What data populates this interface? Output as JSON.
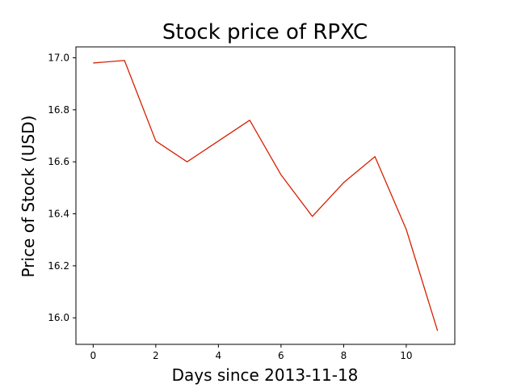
{
  "chart_data": {
    "type": "line",
    "title": "Stock price of RPXC",
    "xlabel": "Days since 2013-11-18",
    "ylabel": "Price of Stock (USD)",
    "x": [
      0,
      1,
      2,
      3,
      4,
      5,
      6,
      7,
      8,
      9,
      10,
      11
    ],
    "series": [
      {
        "values": [
          16.98,
          16.99,
          16.68,
          16.6,
          16.68,
          16.76,
          16.55,
          16.39,
          16.52,
          16.62,
          16.34,
          15.95
        ],
        "color": "#d62000"
      }
    ],
    "xlim": [
      -0.55,
      11.55
    ],
    "ylim": [
      15.898,
      17.042
    ],
    "x_ticks": [
      0,
      2,
      4,
      6,
      8,
      10
    ],
    "x_tick_labels": [
      "0",
      "2",
      "4",
      "6",
      "8",
      "10"
    ],
    "y_ticks": [
      16.0,
      16.2,
      16.4,
      16.6,
      16.8,
      17.0
    ],
    "y_tick_labels": [
      "16.0",
      "16.2",
      "16.4",
      "16.6",
      "16.8",
      "17.0"
    ],
    "grid": false,
    "legend": "none"
  }
}
